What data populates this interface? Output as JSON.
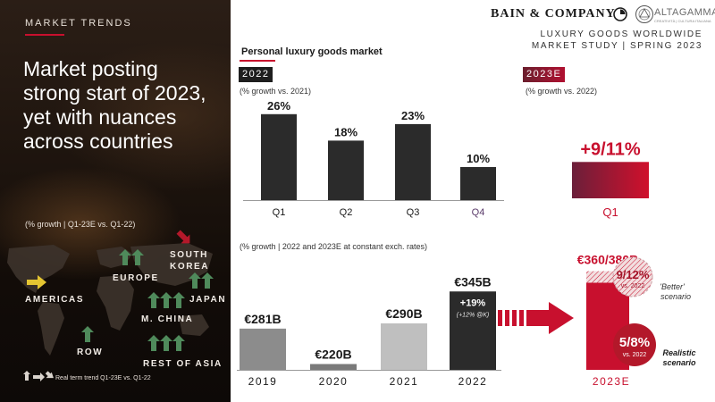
{
  "left": {
    "section_label": "MARKET TRENDS",
    "title": "Market posting strong start of 2023, yet with nuances across countries",
    "growth_note": "(% growth | Q1-23E vs. Q1-22)",
    "regions": {
      "americas": "AMERICAS",
      "europe": "EUROPE",
      "south_korea_1": "SOUTH",
      "south_korea_2": "KOREA",
      "japan": "JAPAN",
      "china": "M. CHINA",
      "row": "ROW",
      "rest_of_asia": "REST OF ASIA"
    },
    "legend_note": "Real term trend Q1-23E vs. Q1-22"
  },
  "header": {
    "brand": "BAIN & COMPANY",
    "partner": "ALTAGAMMA",
    "partner_tagline": "CREATIVITÀ | CULTURA ITALIANA",
    "study_line1": "LUXURY GOODS WORLDWIDE",
    "study_line2": "MARKET STUDY | SPRING 2023"
  },
  "colors": {
    "brand_red": "#c8102e",
    "arrow_green": "#4f8a5b",
    "arrow_yellow": "#e5c531",
    "arrow_red": "#b3182a",
    "bar_dark": "#2b2b2b",
    "bar_grey_2019": "#8c8c8c",
    "bar_grey_2020": "#7a7a7a",
    "bar_grey_2021": "#bfbfbf"
  },
  "chart_data": [
    {
      "type": "bar",
      "title": "Personal luxury goods market",
      "panel_label": "2022",
      "subtitle": "(% growth vs. 2021)",
      "categories": [
        "Q1",
        "Q2",
        "Q3",
        "Q4"
      ],
      "values": [
        26,
        18,
        23,
        10
      ],
      "value_labels": [
        "26%",
        "18%",
        "23%",
        "10%"
      ],
      "unit": "%"
    },
    {
      "type": "bar",
      "panel_label": "2023E",
      "subtitle": "(% growth vs. 2022)",
      "categories": [
        "Q1"
      ],
      "range": [
        9,
        11
      ],
      "value_label": "+9/11%"
    },
    {
      "type": "bar",
      "subtitle": "(% growth | 2022 and 2023E at constant exch. rates)",
      "categories": [
        "2019",
        "2020",
        "2021",
        "2022"
      ],
      "values": [
        281,
        220,
        290,
        345
      ],
      "value_labels": [
        "€281B",
        "€220B",
        "€290B",
        "€345B"
      ],
      "unit": "€B",
      "annotation_2022": {
        "growth": "+19%",
        "note": "(+12% @K)"
      },
      "forecast": {
        "category": "2023E",
        "range": [
          360,
          380
        ],
        "value_label": "€360/380B",
        "better_scenario": {
          "growth": "9/12%",
          "vs": "vs. 2022",
          "label": "'Better' scenario"
        },
        "realistic_scenario": {
          "growth": "5/8%",
          "vs": "vs. 2022",
          "label": "Realistic scenario"
        }
      }
    }
  ]
}
